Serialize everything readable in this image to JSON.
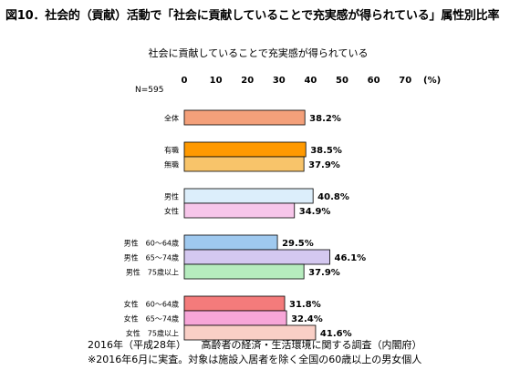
{
  "title": "図10．社会的（貢献）活動で「社会に貢献していることで充実感が得られている」属性別比率",
  "chart_data": {
    "type": "bar",
    "orientation": "horizontal",
    "subtitle": "社会に貢献していることで充実感が得られている",
    "n_label": "N=595",
    "unit_label": "(%)",
    "xlim": [
      0,
      70
    ],
    "xticks": [
      0,
      10,
      20,
      30,
      40,
      50,
      60,
      70
    ],
    "grid": false,
    "value_suffix": "%",
    "groups": [
      {
        "bars": [
          {
            "label": "全体",
            "value": 38.2,
            "color": "#f4a07a"
          }
        ]
      },
      {
        "bars": [
          {
            "label": "有職",
            "value": 38.5,
            "color": "#ff9900"
          },
          {
            "label": "無職",
            "value": 37.9,
            "color": "#f8c46a"
          }
        ]
      },
      {
        "bars": [
          {
            "label": "男性",
            "value": 40.8,
            "color": "#dceefb"
          },
          {
            "label": "女性",
            "value": 34.9,
            "color": "#f7c6ea"
          }
        ]
      },
      {
        "bars": [
          {
            "label": "男性　60～64歳",
            "value": 29.5,
            "color": "#9fc9ef"
          },
          {
            "label": "男性　65～74歳",
            "value": 46.1,
            "color": "#d4c8f0"
          },
          {
            "label": "男性　75歳以上",
            "value": 37.9,
            "color": "#b6ecbe"
          }
        ]
      },
      {
        "bars": [
          {
            "label": "女性　60～64歳",
            "value": 31.8,
            "color": "#f47b7b"
          },
          {
            "label": "女性　65～74歳",
            "value": 32.4,
            "color": "#f7a6d8"
          },
          {
            "label": "女性　75歳以上",
            "value": 41.6,
            "color": "#f9cfc6"
          }
        ]
      }
    ]
  },
  "footnotes": [
    "2016年（平成28年）　　高齢者の経済・生活環境に関する調査（内閣府）",
    "※2016年6月に実査。対象は施設入居者を除く全国の60歳以上の男女個人"
  ]
}
